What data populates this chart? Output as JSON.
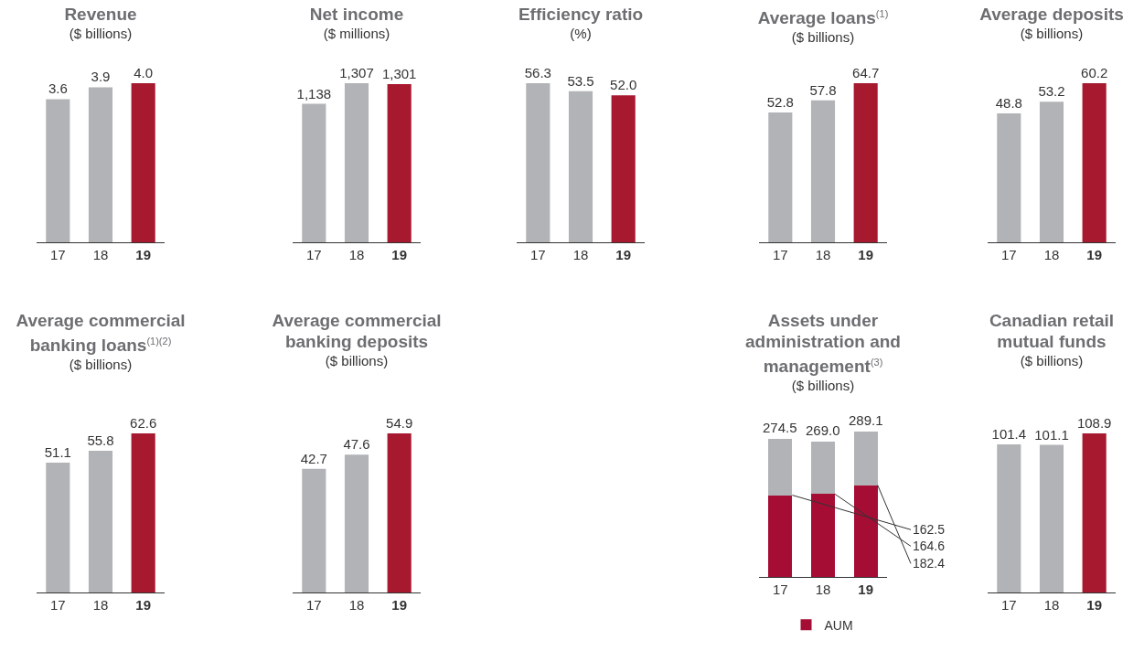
{
  "chart_data": [
    {
      "type": "bar",
      "title": "Revenue",
      "subtitle": "($ billions)",
      "categories": [
        "17",
        "18",
        "19"
      ],
      "values": [
        3.6,
        3.9,
        4.0
      ],
      "colors": [
        "#b1b3b6",
        "#b1b3b6",
        "#a6192e"
      ],
      "value_labels": [
        "3.6",
        "3.9",
        "4.0"
      ]
    },
    {
      "type": "bar",
      "title": "Net income",
      "subtitle": "($ millions)",
      "categories": [
        "17",
        "18",
        "19"
      ],
      "values": [
        1138,
        1307,
        1301
      ],
      "colors": [
        "#b1b3b6",
        "#b1b3b6",
        "#a6192e"
      ],
      "value_labels": [
        "1,138",
        "1,307",
        "1,301"
      ]
    },
    {
      "type": "bar",
      "title": "Efficiency ratio",
      "subtitle": "(%)",
      "categories": [
        "17",
        "18",
        "19"
      ],
      "values": [
        56.3,
        53.5,
        52.0
      ],
      "colors": [
        "#b1b3b6",
        "#b1b3b6",
        "#a6192e"
      ],
      "value_labels": [
        "56.3",
        "53.5",
        "52.0"
      ]
    },
    {
      "type": "bar",
      "title": "Average loans$^{(1)}$",
      "subtitle": "($ billions)",
      "categories": [
        "17",
        "18",
        "19"
      ],
      "values": [
        52.8,
        57.8,
        64.7
      ],
      "colors": [
        "#b1b3b6",
        "#b1b3b6",
        "#a6192e"
      ],
      "value_labels": [
        "52.8",
        "57.8",
        "64.7"
      ]
    },
    {
      "type": "bar",
      "title": "Average deposits",
      "subtitle": "($ billions)",
      "categories": [
        "17",
        "18",
        "19"
      ],
      "values": [
        48.8,
        53.2,
        60.2
      ],
      "colors": [
        "#b1b3b6",
        "#b1b3b6",
        "#a6192e"
      ],
      "value_labels": [
        "48.8",
        "53.2",
        "60.2"
      ]
    },
    {
      "type": "bar",
      "title": "Average commercial banking loans$^{(1)(2)}$",
      "subtitle": "($ billions)",
      "categories": [
        "17",
        "18",
        "19"
      ],
      "values": [
        51.1,
        55.8,
        62.6
      ],
      "colors": [
        "#b1b3b6",
        "#b1b3b6",
        "#a6192e"
      ],
      "value_labels": [
        "51.1",
        "55.8",
        "62.6"
      ]
    },
    {
      "type": "bar",
      "title": "Average commercial banking deposits",
      "subtitle": "($ billions)",
      "categories": [
        "17",
        "18",
        "19"
      ],
      "values": [
        42.7,
        47.6,
        54.9
      ],
      "colors": [
        "#b1b3b6",
        "#b1b3b6",
        "#a6192e"
      ],
      "value_labels": [
        "42.7",
        "47.6",
        "54.9"
      ]
    },
    {
      "type": "bar",
      "stacked": true,
      "title": "Assets under administration and management$^{(3)}$",
      "subtitle": "($ billions)",
      "categories": [
        "17",
        "18",
        "19"
      ],
      "series": [
        {
          "name": "AUM",
          "color": "#a50d35",
          "values": [
            162.5,
            164.6,
            182.4
          ],
          "value_labels": [
            "162.5",
            "164.6",
            "182.4"
          ]
        },
        {
          "color": "#b1b3b6",
          "values": [
            112.0,
            104.4,
            106.7
          ]
        }
      ],
      "totals": [
        "274.5",
        "269.0",
        "289.1"
      ],
      "legend": "bottom"
    },
    {
      "type": "bar",
      "title": "Canadian retail mutual funds",
      "subtitle": "($ billions)",
      "categories": [
        "17",
        "18",
        "19"
      ],
      "values": [
        101.4,
        101.1,
        108.9
      ],
      "colors": [
        "#b1b3b6",
        "#b1b3b6",
        "#a6192e"
      ],
      "value_labels": [
        "101.4",
        "101.1",
        "108.9"
      ]
    }
  ]
}
